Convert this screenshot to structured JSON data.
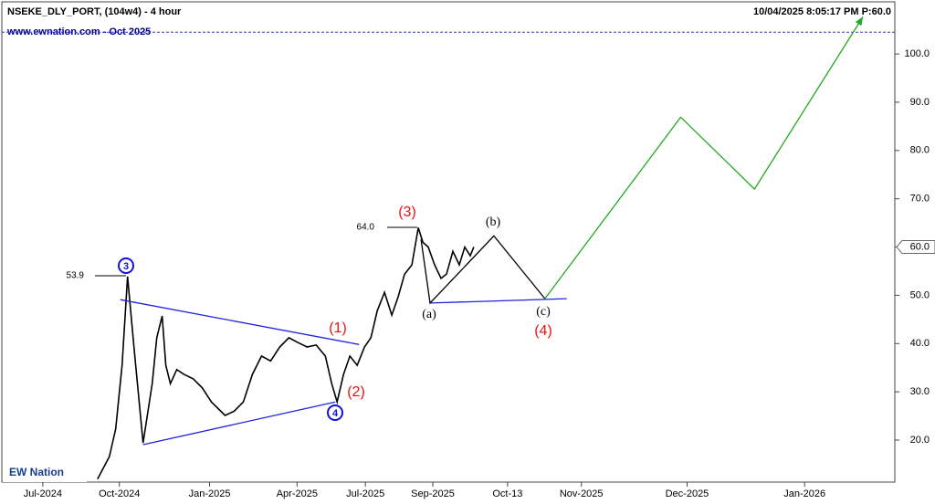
{
  "chart_data": {
    "type": "line",
    "title": "NSEKE_DLY_PORT, (104w4) - 4 hour",
    "subtitle": "www.ewnation.com  -  Oct 2025",
    "timestamp": "10/04/2025 8:05:17 PM  P:60.0",
    "logo": "EW Nation",
    "xlim": [
      0,
      980
    ],
    "ylim": [
      11.3,
      110.8
    ],
    "xticks": [
      {
        "value": 45,
        "label": "Jul-2024"
      },
      {
        "value": 129,
        "label": "Oct-2024"
      },
      {
        "value": 228,
        "label": "Jan-2025"
      },
      {
        "value": 324,
        "label": "Apr-2025"
      },
      {
        "value": 399,
        "label": "Jul-2025"
      },
      {
        "value": 473,
        "label": "Sep-2025"
      },
      {
        "value": 555,
        "label": "Oct-13"
      },
      {
        "value": 636,
        "label": "Nov-2025"
      },
      {
        "value": 752,
        "label": "Dec-2025"
      },
      {
        "value": 881,
        "label": "Jan-2026"
      }
    ],
    "yticks": [
      {
        "value": 20,
        "label": "20.0"
      },
      {
        "value": 30,
        "label": "30.0"
      },
      {
        "value": 40,
        "label": "40.0"
      },
      {
        "value": 50,
        "label": "50.0"
      },
      {
        "value": 60,
        "label": "60.0"
      },
      {
        "value": 70,
        "label": "70.0"
      },
      {
        "value": 80,
        "label": "80.0"
      },
      {
        "value": 90,
        "label": "90.0"
      },
      {
        "value": 100,
        "label": "100.0"
      }
    ],
    "last_price": {
      "value": 60,
      "label": "60.0"
    },
    "reference_line": {
      "value": 104.5,
      "color": "#3333cc"
    },
    "price": {
      "color": "#000000",
      "x": [
        105,
        118,
        125,
        132,
        138,
        145,
        155,
        165,
        170,
        176,
        180,
        185,
        192,
        200,
        210,
        220,
        230,
        245,
        255,
        265,
        275,
        285,
        295,
        305,
        315,
        325,
        335,
        345,
        355,
        362,
        368,
        375,
        382,
        390,
        398,
        405,
        412,
        420,
        428,
        435,
        442,
        450,
        457,
        462,
        468,
        475,
        482,
        488,
        495,
        502,
        508,
        514,
        518
      ],
      "values": [
        11.9,
        16.6,
        22.3,
        35.5,
        53.9,
        39.3,
        19.4,
        31.7,
        41.2,
        45.7,
        35.5,
        31.7,
        34.6,
        33.6,
        32.7,
        30.8,
        27.9,
        25.1,
        26,
        27.9,
        33.6,
        37.4,
        36.4,
        39.3,
        41.2,
        40.2,
        39.3,
        39.7,
        37.4,
        31.7,
        27.9,
        33.6,
        37.4,
        35.5,
        39.3,
        41.2,
        46.8,
        50.6,
        45.9,
        49.7,
        54.4,
        56.3,
        64,
        61,
        60,
        56.3,
        53.5,
        54.4,
        59.1,
        56.3,
        60,
        58.2,
        60
      ]
    },
    "lines": [
      {
        "color": "#2222dd",
        "x": [
          130,
          392
        ],
        "values": [
          49.1,
          39.8
        ]
      },
      {
        "color": "#2222dd",
        "x": [
          155,
          366
        ],
        "values": [
          19.05,
          27.9
        ]
      },
      {
        "color": "#2222dd",
        "x": [
          470,
          620
        ],
        "values": [
          48.4,
          49.3
        ]
      },
      {
        "color": "#000000",
        "x": [
          460,
          470,
          540,
          596
        ],
        "values": [
          61.6,
          48.4,
          62.3,
          49.3
        ]
      },
      {
        "color": "#22aa22",
        "x": [
          596,
          745,
          826,
          945
        ],
        "values": [
          49.3,
          86.9,
          72.0,
          107.7
        ],
        "arrow": true
      }
    ],
    "annotations": [
      {
        "text": "53.9",
        "color": "#000000"
      },
      {
        "text": "64.0",
        "color": "#000000"
      },
      {
        "text": "(1)",
        "color": "#ee1111"
      },
      {
        "text": "(2)",
        "color": "#ee1111"
      },
      {
        "text": "(3)",
        "color": "#ee1111"
      },
      {
        "text": "(4)",
        "color": "#ee1111"
      },
      {
        "text": "(a)",
        "color": "#000000"
      },
      {
        "text": "(b)",
        "color": "#000000"
      },
      {
        "text": "(c)",
        "color": "#000000"
      },
      {
        "text": "3",
        "color": "#1111dd"
      },
      {
        "text": "4",
        "color": "#1111dd"
      }
    ]
  }
}
